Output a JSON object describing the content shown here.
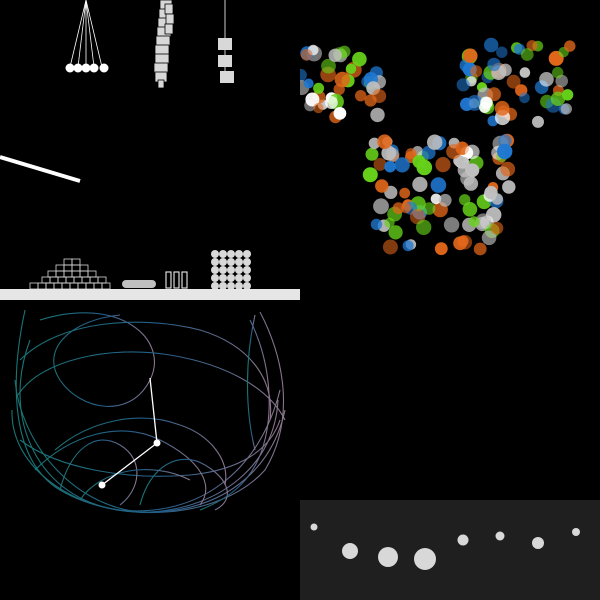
{
  "colors": {
    "background": "#000000",
    "white": "#ffffff",
    "light_gray": "#d8d8d8",
    "ground": "#e6e6e6",
    "strip": "#1f1f1f",
    "particle_orange": "#e0661a",
    "particle_green": "#66d11a",
    "particle_blue": "#1f78d1",
    "particle_white": "#ffffff",
    "particle_gray": "#bfbfbf",
    "trace_teal": "#1e8a8a",
    "trace_blue": "#2c6ea0",
    "trace_purple": "#a58aa6"
  },
  "icons": {
    "physics_panel": "rigid-body-simulation",
    "particle_panel": "bokeh-particle-field",
    "pendulum_panel": "double-pendulum-trace",
    "strip_panel": "circle-size-row"
  }
}
